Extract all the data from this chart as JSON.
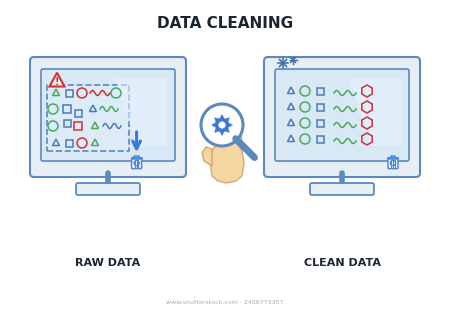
{
  "title": "DATA CLEANING",
  "label_left": "RAW DATA",
  "label_right": "CLEAN DATA",
  "bg_color": "#ffffff",
  "monitor_fill": "#d8e8f5",
  "monitor_border": "#5a8abf",
  "monitor_body": "#e8eef5",
  "screen_highlight": "#eaf2fc",
  "dashed_box_color": "#5a8abf",
  "warning_color": "#cc3333",
  "trash_color": "#4a8ad4",
  "arrow_color": "#3a7ad4",
  "gear_color": "#3a7ad4",
  "hand_skin": "#f5d5a0",
  "hand_border": "#d4a870",
  "sparkle_color": "#3a6aaa",
  "shape_green": "#4aaa5a",
  "shape_red": "#cc3333",
  "shape_blue": "#4a7ab5",
  "title_fontsize": 11,
  "label_fontsize": 8,
  "watermark": "www.shutterstock.com · 2456773357"
}
